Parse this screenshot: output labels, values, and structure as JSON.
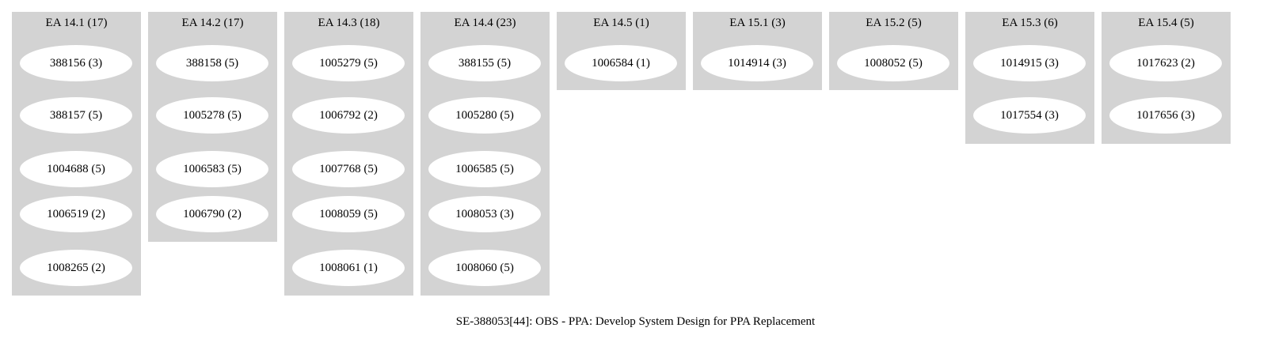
{
  "diagram": {
    "caption": "SE-388053[44]: OBS - PPA: Develop System Design for PPA Replacement",
    "clusters": [
      {
        "label": "EA 14.1 (17)",
        "nodes": [
          "388156 (3)",
          "388157 (5)",
          "1004688 (5)",
          "1006519 (2)",
          "1008265 (2)"
        ]
      },
      {
        "label": "EA 14.2 (17)",
        "nodes": [
          "388158 (5)",
          "1005278 (5)",
          "1006583 (5)",
          "1006790 (2)"
        ]
      },
      {
        "label": "EA 14.3 (18)",
        "nodes": [
          "1005279 (5)",
          "1006792 (2)",
          "1007768 (5)",
          "1008059 (5)",
          "1008061 (1)"
        ]
      },
      {
        "label": "EA 14.4 (23)",
        "nodes": [
          "388155 (5)",
          "1005280 (5)",
          "1006585 (5)",
          "1008053 (3)",
          "1008060 (5)"
        ]
      },
      {
        "label": "EA 14.5 (1)",
        "nodes": [
          "1006584 (1)"
        ]
      },
      {
        "label": "EA 15.1 (3)",
        "nodes": [
          "1014914 (3)"
        ]
      },
      {
        "label": "EA 15.2 (5)",
        "nodes": [
          "1008052 (5)"
        ]
      },
      {
        "label": "EA 15.3 (6)",
        "nodes": [
          "1014915 (3)",
          "1017554 (3)"
        ]
      },
      {
        "label": "EA 15.4 (5)",
        "nodes": [
          "1017623 (2)",
          "1017656 (3)"
        ]
      }
    ]
  }
}
